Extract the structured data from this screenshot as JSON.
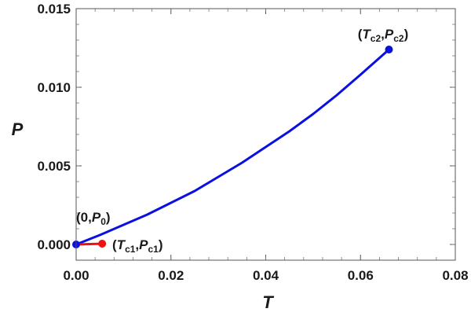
{
  "chart_data": {
    "type": "line",
    "xlabel": "T",
    "ylabel": "P",
    "xlim": [
      0,
      0.08
    ],
    "ylim": [
      -0.001,
      0.015
    ],
    "x_ticks": [
      "0.00",
      "0.02",
      "0.04",
      "0.06",
      "0.08"
    ],
    "y_ticks": [
      "0.000",
      "0.005",
      "0.010",
      "0.015"
    ],
    "grid": false,
    "series": [
      {
        "color": "#0a10e0",
        "x": [
          0,
          0.005,
          0.01,
          0.015,
          0.02,
          0.025,
          0.03,
          0.035,
          0.04,
          0.045,
          0.05,
          0.055,
          0.06,
          0.063,
          0.066
        ],
        "y": [
          0,
          0.0006,
          0.00125,
          0.0019,
          0.00265,
          0.0034,
          0.0043,
          0.0052,
          0.0062,
          0.0072,
          0.0083,
          0.0095,
          0.0108,
          0.0116,
          0.0124
        ]
      },
      {
        "color": "#f01010",
        "x": [
          0,
          0.0055
        ],
        "y": [
          0,
          5e-05
        ]
      }
    ],
    "points": [
      {
        "x": 0.066,
        "y": 0.0124,
        "color": "#0a10e0"
      },
      {
        "x": 0.0055,
        "y": 5e-05,
        "color": "#f01010"
      },
      {
        "x": 0.0,
        "y": 0.0,
        "color": "#0a10e0"
      }
    ],
    "annotations": [
      {
        "open": "(",
        "v1": "T",
        "s1": "c2",
        "sep": ",",
        "v2": "P",
        "s2": "c2",
        "close": ")"
      },
      {
        "open": "(",
        "v1": "T",
        "s1": "c1",
        "sep": ",",
        "v2": "P",
        "s2": "c1",
        "close": ")"
      },
      {
        "open": "(",
        "v1": "0",
        "s1": "",
        "sep": ",",
        "v2": "P",
        "s2": "0",
        "close": ")"
      }
    ]
  }
}
